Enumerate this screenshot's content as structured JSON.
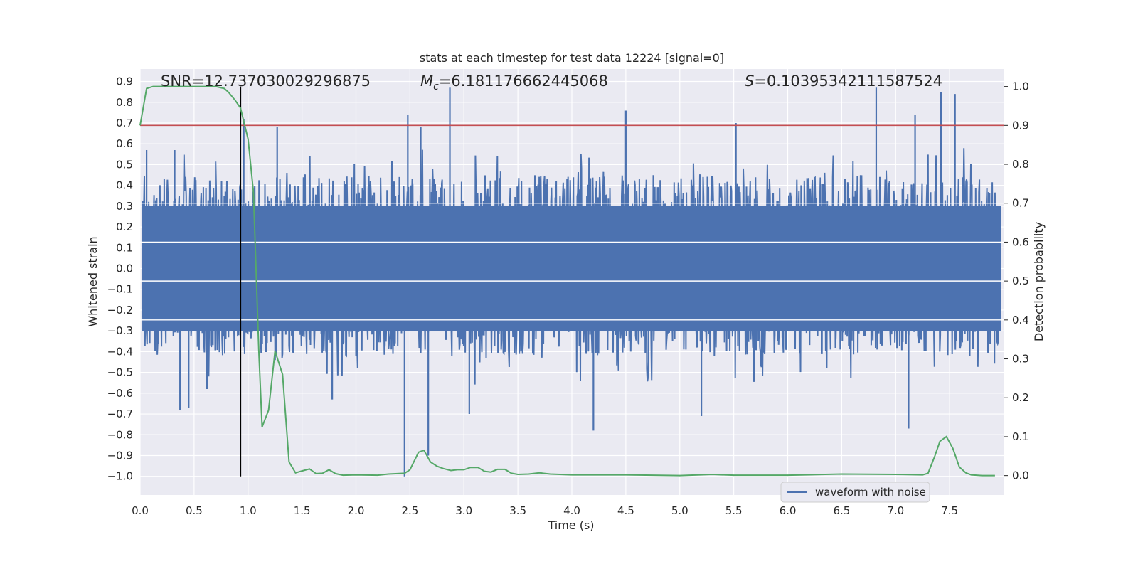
{
  "chart_data": {
    "type": "line",
    "title": "stats at each timestep for test data 12224 [signal=0]",
    "xlabel": "Time (s)",
    "ylabel_left": "Whitened strain",
    "ylabel_right": "Detection probability",
    "xlim": [
      0.0,
      8.0
    ],
    "ylim_left": [
      -1.09,
      0.96
    ],
    "ylim_right": [
      -0.05,
      1.045
    ],
    "x_ticks": [
      "0.0",
      "0.5",
      "1.0",
      "1.5",
      "2.0",
      "2.5",
      "3.0",
      "3.5",
      "4.0",
      "4.5",
      "5.0",
      "5.5",
      "6.0",
      "6.5",
      "7.0",
      "7.5"
    ],
    "y_ticks_left": [
      "0.9",
      "0.8",
      "0.7",
      "0.6",
      "0.5",
      "0.4",
      "0.3",
      "0.2",
      "0.1",
      "0.0",
      "−0.1",
      "−0.2",
      "−0.3",
      "−0.4",
      "−0.5",
      "−0.6",
      "−0.7",
      "−0.8",
      "−0.9",
      "−1.0"
    ],
    "y_ticks_right": [
      "1.0",
      "0.9",
      "0.8",
      "0.7",
      "0.6",
      "0.5",
      "0.4",
      "0.3",
      "0.2",
      "0.1",
      "0.0"
    ],
    "annotations": {
      "snr": "SNR=12.737030029296875",
      "mc_symbol": "M",
      "mc_sub": "c",
      "mc_value": "=6.181176662445068",
      "s_symbol": "S",
      "s_value": "=0.10395342111587524"
    },
    "threshold": 0.9,
    "marker_time": 0.93,
    "legend": [
      "waveform with noise"
    ],
    "series": [
      {
        "name": "waveform with noise",
        "axis": "left",
        "color": "#4c72b0",
        "noise_envelope": {
          "typical_min": -0.42,
          "typical_max": 0.45
        },
        "spikes": [
          [
            0.06,
            0.57
          ],
          [
            0.32,
            0.57
          ],
          [
            0.37,
            -0.68
          ],
          [
            0.45,
            -0.67
          ],
          [
            0.62,
            -0.58
          ],
          [
            0.96,
            0.72
          ],
          [
            1.27,
            0.68
          ],
          [
            1.78,
            -0.63
          ],
          [
            2.48,
            0.74
          ],
          [
            2.45,
            -1.0
          ],
          [
            2.6,
            0.68
          ],
          [
            2.67,
            -0.9
          ],
          [
            2.87,
            0.87
          ],
          [
            3.05,
            -0.7
          ],
          [
            4.2,
            -0.78
          ],
          [
            4.5,
            0.76
          ],
          [
            5.2,
            -0.71
          ],
          [
            5.52,
            0.7
          ],
          [
            6.82,
            0.87
          ],
          [
            7.12,
            -0.77
          ],
          [
            7.18,
            0.74
          ],
          [
            7.42,
            0.85
          ],
          [
            7.55,
            0.84
          ]
        ]
      },
      {
        "name": "detection probability",
        "axis": "right",
        "color": "#55a868",
        "x": [
          0.0,
          0.06,
          0.12,
          0.2,
          0.3,
          0.4,
          0.5,
          0.6,
          0.7,
          0.78,
          0.82,
          0.88,
          0.93,
          1.0,
          1.05,
          1.1,
          1.13,
          1.19,
          1.25,
          1.32,
          1.38,
          1.44,
          1.5,
          1.57,
          1.63,
          1.69,
          1.75,
          1.81,
          1.88,
          2.0,
          2.2,
          2.3,
          2.45,
          2.5,
          2.58,
          2.63,
          2.69,
          2.75,
          2.81,
          2.88,
          2.94,
          3.0,
          3.06,
          3.13,
          3.19,
          3.25,
          3.31,
          3.38,
          3.44,
          3.5,
          3.6,
          3.7,
          3.8,
          4.0,
          4.5,
          5.0,
          5.3,
          5.5,
          6.0,
          6.5,
          7.0,
          7.25,
          7.3,
          7.36,
          7.41,
          7.47,
          7.53,
          7.59,
          7.65,
          7.7,
          7.8,
          7.92
        ],
        "values": [
          0.9,
          0.995,
          1.0,
          1.0,
          1.0,
          1.0,
          1.0,
          1.0,
          1.0,
          0.995,
          0.985,
          0.965,
          0.945,
          0.865,
          0.73,
          0.32,
          0.125,
          0.168,
          0.32,
          0.26,
          0.035,
          0.007,
          0.012,
          0.017,
          0.005,
          0.006,
          0.015,
          0.005,
          0.001,
          0.002,
          0.001,
          0.004,
          0.006,
          0.015,
          0.06,
          0.065,
          0.035,
          0.024,
          0.018,
          0.013,
          0.015,
          0.015,
          0.021,
          0.021,
          0.011,
          0.009,
          0.016,
          0.016,
          0.006,
          0.003,
          0.004,
          0.007,
          0.004,
          0.002,
          0.002,
          0.0,
          0.003,
          0.001,
          0.001,
          0.004,
          0.003,
          0.002,
          0.006,
          0.048,
          0.088,
          0.1,
          0.07,
          0.022,
          0.007,
          0.002,
          0.0,
          0.0
        ]
      }
    ]
  }
}
